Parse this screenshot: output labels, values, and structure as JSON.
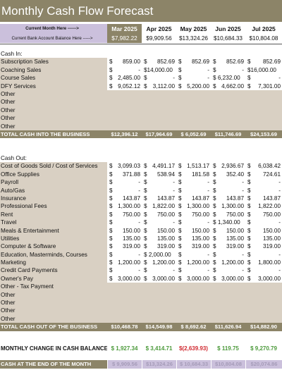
{
  "title": "Monthly Cash Flow Forecast",
  "header": {
    "current_month_label": "Current Month Here ------>",
    "balance_label": "Current Bank Account Balance Here ----->",
    "months": [
      "Mar 2025",
      "Apr 2025",
      "May 2025",
      "Jun 2025",
      "Jul 2025"
    ],
    "balances": [
      "$7,982.22",
      "$9,909.56",
      "$13,324.26",
      "$10,684.33",
      "$10,804.08"
    ]
  },
  "colors": {
    "accent": "#8c8468",
    "tan": "#d9d0c3",
    "lilac": "#cbc0dc",
    "green": "#4c9a3b",
    "red": "#d0282f"
  },
  "cash_in": {
    "title": "Cash In:",
    "rows": [
      {
        "label": "Subscription Sales",
        "values": [
          "859.00",
          "852.69",
          "852.69",
          "852.69",
          "852.69"
        ]
      },
      {
        "label": "Coaching Sales",
        "values": [
          "-",
          "$14,000.00",
          "-",
          "-",
          "$16,000.00"
        ]
      },
      {
        "label": "Course Sales",
        "values": [
          "2,485.00",
          "-",
          "-",
          "$ 6,232.00",
          "-"
        ]
      },
      {
        "label": "DFY Services",
        "values": [
          "9,052.12",
          "3,112.00",
          "5,200.00",
          "4,662.00",
          "7,301.00"
        ]
      },
      {
        "label": "Other",
        "values": [
          "",
          "",
          "",
          "",
          ""
        ]
      },
      {
        "label": "Other",
        "values": [
          "",
          "",
          "",
          "",
          ""
        ]
      },
      {
        "label": "Other",
        "values": [
          "",
          "",
          "",
          "",
          ""
        ]
      },
      {
        "label": "Other",
        "values": [
          "",
          "",
          "",
          "",
          ""
        ]
      },
      {
        "label": "Other",
        "values": [
          "",
          "",
          "",
          "",
          ""
        ]
      }
    ],
    "total_label": "TOTAL CASH INTO THE BUSINESS",
    "totals": [
      "$12,396.12",
      "$17,964.69",
      "$ 6,052.69",
      "$11,746.69",
      "$24,153.69"
    ]
  },
  "cash_out": {
    "title": "Cash Out:",
    "rows": [
      {
        "label": "Cost of Goods Sold / Cost of Services",
        "values": [
          "3,099.03",
          "4,491.17",
          "1,513.17",
          "2,936.67",
          "6,038.42"
        ]
      },
      {
        "label": "Office Supplies",
        "values": [
          "371.88",
          "538.94",
          "181.58",
          "352.40",
          "724.61"
        ]
      },
      {
        "label": "Payroll",
        "values": [
          "-",
          "-",
          "-",
          "-",
          "-"
        ]
      },
      {
        "label": "Auto/Gas",
        "values": [
          "-",
          "-",
          "-",
          "-",
          "-"
        ]
      },
      {
        "label": "Insurance",
        "values": [
          "143.87",
          "143.87",
          "143.87",
          "143.87",
          "143.87"
        ]
      },
      {
        "label": "Professional Fees",
        "values": [
          "1,300.00",
          "1,822.00",
          "1,300.00",
          "1,300.00",
          "1,822.00"
        ]
      },
      {
        "label": "Rent",
        "values": [
          "750.00",
          "750.00",
          "750.00",
          "750.00",
          "750.00"
        ]
      },
      {
        "label": "Travel",
        "values": [
          "-",
          "-",
          "-",
          "$ 1,340.00",
          "-"
        ]
      },
      {
        "label": "Meals & Entertainment",
        "values": [
          "150.00",
          "150.00",
          "150.00",
          "150.00",
          "150.00"
        ]
      },
      {
        "label": "Utilities",
        "values": [
          "135.00",
          "135.00",
          "135.00",
          "135.00",
          "135.00"
        ]
      },
      {
        "label": "Computer & Software",
        "values": [
          "319.00",
          "319.00",
          "319.00",
          "319.00",
          "319.00"
        ]
      },
      {
        "label": "Education, Masterminds, Courses",
        "values": [
          "-",
          "$ 2,000.00",
          "-",
          "-",
          "-"
        ]
      },
      {
        "label": "Marketing",
        "values": [
          "1,200.00",
          "1,200.00",
          "1,200.00",
          "1,200.00",
          "1,800.00"
        ]
      },
      {
        "label": "Credit Card Payments",
        "values": [
          "-",
          "-",
          "-",
          "-",
          "-"
        ]
      },
      {
        "label": "Owner's Pay",
        "values": [
          "3,000.00",
          "3,000.00",
          "3,000.00",
          "3,000.00",
          "3,000.00"
        ]
      },
      {
        "label": "Other - Tax Payment",
        "values": [
          "",
          "",
          "",
          "",
          ""
        ]
      },
      {
        "label": "Other",
        "values": [
          "",
          "",
          "",
          "",
          ""
        ]
      },
      {
        "label": "Other",
        "values": [
          "",
          "",
          "",
          "",
          ""
        ]
      },
      {
        "label": "Other",
        "values": [
          "",
          "",
          "",
          "",
          ""
        ]
      },
      {
        "label": "Other",
        "values": [
          "",
          "",
          "",
          "",
          ""
        ]
      }
    ],
    "total_label": "TOTAL CASH OUT OF THE BUSINESS",
    "totals": [
      "$10,468.78",
      "$14,549.98",
      "$ 8,692.62",
      "$11,626.94",
      "$14,882.90"
    ]
  },
  "monthly_change": {
    "label": "MONTHLY CHANGE IN CASH BALANCE",
    "values": [
      "$ 1,927.34",
      "$ 3,414.71",
      "$(2,639.93)",
      "$ 119.75",
      "$ 9,270.79"
    ],
    "signs": [
      "positive",
      "positive",
      "negative",
      "positive",
      "positive"
    ]
  },
  "end_of_month": {
    "label": "CASH AT THE END OF THE MONTH",
    "values": [
      "$ 9,909.56",
      "$13,324.26",
      "$ 10,684.33",
      "$10,804.08",
      "$20,074.86"
    ]
  }
}
